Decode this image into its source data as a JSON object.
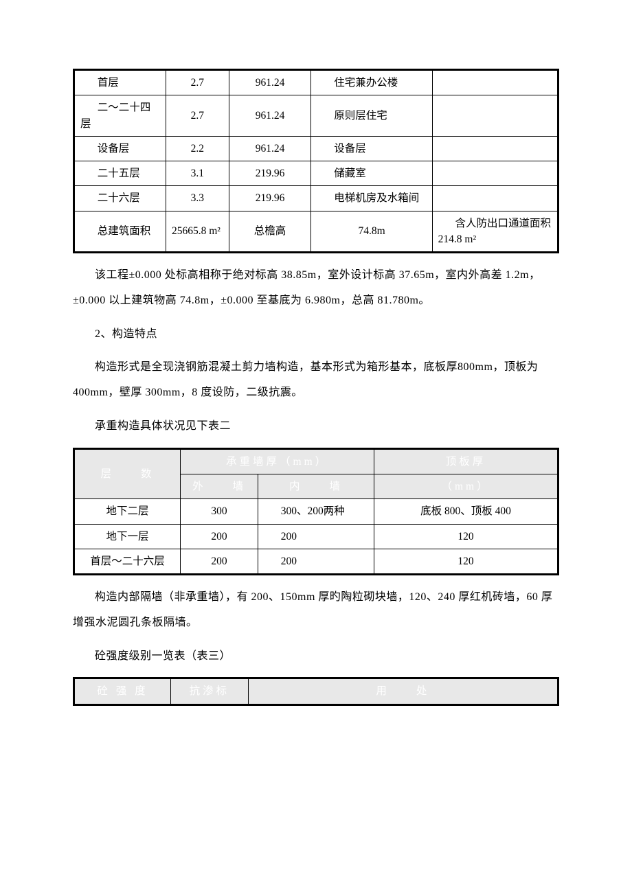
{
  "table1": {
    "rows": [
      {
        "c0": "首层",
        "c1": "2.7",
        "c2": "961.24",
        "c3": "住宅兼办公楼",
        "c4": ""
      },
      {
        "c0": "二～二十四层",
        "c1": "2.7",
        "c2": "961.24",
        "c3": "原则层住宅",
        "c4": ""
      },
      {
        "c0": "设备层",
        "c1": "2.2",
        "c2": "961.24",
        "c3": "设备层",
        "c4": ""
      },
      {
        "c0": "二十五层",
        "c1": "3.1",
        "c2": "219.96",
        "c3": "储藏室",
        "c4": ""
      },
      {
        "c0": "二十六层",
        "c1": "3.3",
        "c2": "219.96",
        "c3": "电梯机房及水箱间",
        "c4": ""
      }
    ],
    "foot": {
      "c0": "总建筑面积",
      "c1": "25665.8 m²",
      "c2": "总檐高",
      "c3": "74.8m",
      "c4": "含人防出口通道面积 214.8 m²"
    },
    "col_widths": [
      "19%",
      "13%",
      "17%",
      "25%",
      "26%"
    ]
  },
  "p1": "该工程±0.000 处标高相称于绝对标高 38.85m，室外设计标高 37.65m，室内外高差 1.2m，±0.000 以上建筑物高 74.8m，±0.000 至基底为 6.980m，总高 81.780m。",
  "p2": "2、构造特点",
  "p3": "构造形式是全现浇钢筋混凝土剪力墙构造，基本形式为箱形基本，底板厚800mm，顶板为 400mm，壁厚 300mm，8 度设防，二级抗震。",
  "p4": "承重构造具体状况见下表二",
  "table2": {
    "header": {
      "r0c0": "层　　数",
      "r0c1": "承重墙厚（mm）",
      "r0c2": "顶板厚",
      "r1c0": "外　　墙",
      "r1c1": "内　　墙",
      "r1c2": "（mm）"
    },
    "rows": [
      {
        "c0": "地下二层",
        "c1": "300",
        "c2": "300、200两种",
        "c3": "底板 800、顶板 400"
      },
      {
        "c0": "地下一层",
        "c1": "200",
        "c2": "200",
        "c3": "120"
      },
      {
        "c0": "首层～二十六层",
        "c1": "200",
        "c2": "200",
        "c3": "120"
      }
    ],
    "col_widths": [
      "22%",
      "16%",
      "24%",
      "38%"
    ]
  },
  "p5": "构造内部隔墙（非承重墙），有 200、150mm 厚旳陶粒砌块墙，120、240 厚红机砖墙，60 厚增强水泥圆孔条板隔墙。",
  "p6": "砼强度级别一览表（表三）",
  "table3": {
    "header": {
      "c0": "砼 强 度",
      "c1": "抗渗标",
      "c2": "用　　处"
    },
    "col_widths": [
      "20%",
      "16%",
      "64%"
    ]
  }
}
